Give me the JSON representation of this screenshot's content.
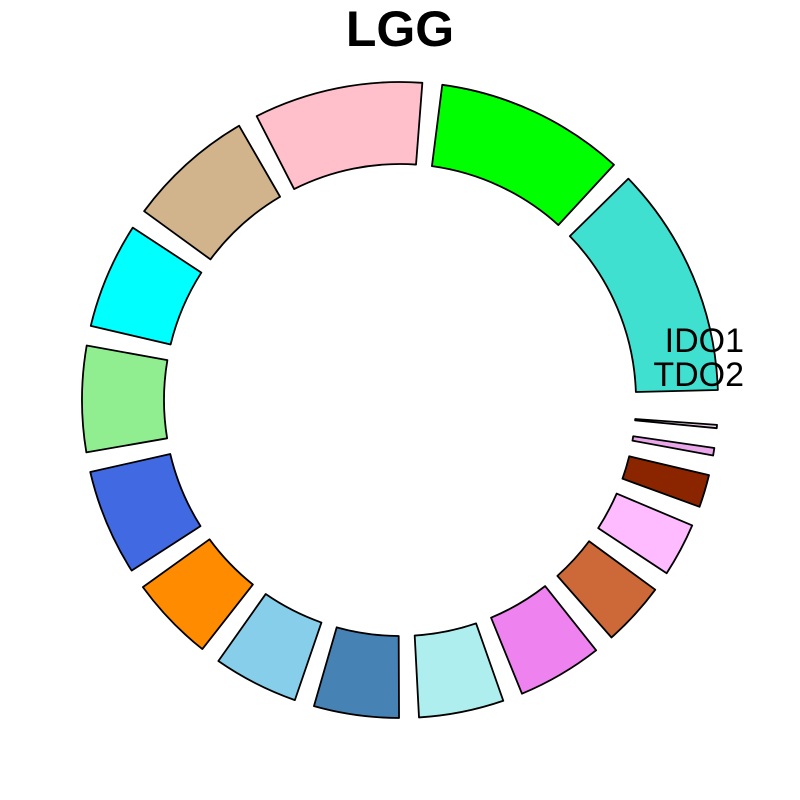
{
  "chart_data": {
    "type": "pie",
    "style": "donut",
    "title": "LGG",
    "slices": [
      {
        "label": "",
        "value": 12,
        "color": "#40E0D0"
      },
      {
        "label": "",
        "value": 10,
        "color": "#00FF00"
      },
      {
        "label": "",
        "value": 9,
        "color": "#FFC0CB"
      },
      {
        "label": "",
        "value": 7,
        "color": "#D2B48C"
      },
      {
        "label": "",
        "value": 6,
        "color": "#00FFFF"
      },
      {
        "label": "",
        "value": 6,
        "color": "#90EE90"
      },
      {
        "label": "",
        "value": 6,
        "color": "#4169E1"
      },
      {
        "label": "",
        "value": 5,
        "color": "#FF8C00"
      },
      {
        "label": "",
        "value": 5,
        "color": "#87CEEB"
      },
      {
        "label": "",
        "value": 5,
        "color": "#4682B4"
      },
      {
        "label": "",
        "value": 5,
        "color": "#AFEEEE"
      },
      {
        "label": "",
        "value": 5,
        "color": "#EE82EE"
      },
      {
        "label": "",
        "value": 4,
        "color": "#CD6839"
      },
      {
        "label": "",
        "value": 3.5,
        "color": "#FFBBFF"
      },
      {
        "label": "",
        "value": 2.5,
        "color": "#8B2500"
      },
      {
        "label": "",
        "value": 1.3,
        "color": "#EAA8EA"
      },
      {
        "label": "",
        "value": 1.1,
        "color": "#EED2EE"
      },
      {
        "label": "IDO1",
        "value": 0.7,
        "color": "#FFE1FF"
      },
      {
        "label": "TDO2",
        "value": 0.0,
        "color": "#FFFFFF"
      }
    ]
  }
}
